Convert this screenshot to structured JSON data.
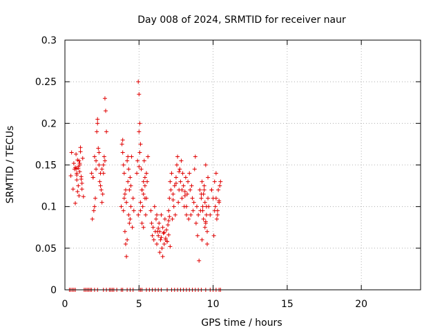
{
  "chart_data": {
    "type": "scatter",
    "title": "Day 008 of 2024, SRMTID for receiver naur",
    "xlabel": "GPS time / hours",
    "ylabel": "SRMTID / TECUs",
    "xlim": [
      0,
      24
    ],
    "ylim": [
      0,
      0.3
    ],
    "x_ticks": [
      0,
      5,
      10,
      15,
      20
    ],
    "x_tick_labels": [
      "0",
      "5",
      "10",
      "15",
      "20"
    ],
    "y_ticks": [
      0,
      0.05,
      0.1,
      0.15,
      0.2,
      0.25,
      0.3
    ],
    "y_tick_labels": [
      "0",
      "0.05",
      "0.1",
      "0.15",
      "0.2",
      "0.25",
      "0.3"
    ],
    "grid": true,
    "marker": "+",
    "color": "#e00000",
    "series": [
      {
        "x": [
          0.4,
          0.45,
          0.55,
          0.6,
          0.65,
          0.7,
          0.75,
          0.8,
          0.85,
          0.9,
          0.95,
          1.0,
          1.05,
          1.1,
          1.15,
          1.2,
          1.25,
          0.7,
          0.8,
          0.9,
          1.0,
          1.1,
          0.75,
          0.85,
          0.95,
          1.05,
          1.15,
          0.8,
          0.9,
          1.0,
          1.8,
          1.85,
          1.9,
          1.95,
          2.0,
          2.05,
          2.1,
          2.15,
          2.2,
          2.25,
          2.3,
          2.35,
          2.4,
          2.45,
          2.5,
          2.55,
          2.6,
          2.65,
          2.7,
          2.75,
          2.8,
          1.9,
          2.0,
          2.1,
          2.2,
          2.3,
          2.4,
          2.5,
          2.6,
          2.7,
          3.8,
          3.85,
          3.9,
          3.95,
          4.0,
          4.05,
          4.1,
          4.15,
          4.2,
          4.25,
          4.3,
          4.35,
          4.4,
          4.45,
          4.5,
          4.55,
          4.6,
          4.65,
          3.9,
          4.0,
          4.1,
          4.2,
          4.3,
          4.4,
          3.95,
          4.05,
          4.15,
          4.25,
          4.35,
          4.45,
          4.85,
          4.9,
          4.95,
          5.0,
          5.05,
          5.1,
          5.15,
          5.2,
          5.25,
          5.3,
          5.35,
          5.4,
          5.45,
          5.5,
          5.55,
          5.6,
          4.95,
          5.0,
          5.05,
          5.1,
          5.2,
          5.3,
          5.4,
          5.5,
          5.0,
          5.1,
          5.2,
          5.3,
          5.4,
          5.5,
          5.8,
          5.85,
          5.9,
          5.95,
          6.0,
          6.05,
          6.1,
          6.15,
          6.2,
          6.25,
          6.3,
          6.35,
          6.4,
          6.45,
          6.5,
          6.55,
          6.6,
          6.65,
          6.7,
          6.75,
          6.8,
          6.85,
          6.9,
          6.95,
          7.0,
          7.05,
          7.1,
          6.2,
          6.4,
          6.6,
          6.8,
          7.0,
          6.3,
          6.5,
          6.7,
          6.9,
          7.0,
          7.05,
          7.1,
          7.15,
          7.2,
          7.25,
          7.3,
          7.35,
          7.4,
          7.45,
          7.5,
          7.55,
          7.6,
          7.65,
          7.7,
          7.75,
          7.8,
          7.85,
          7.9,
          7.95,
          8.0,
          8.05,
          8.1,
          8.15,
          8.2,
          7.3,
          7.5,
          7.7,
          7.9,
          8.1,
          8.2,
          8.25,
          8.3,
          8.35,
          8.4,
          8.45,
          8.5,
          8.55,
          8.6,
          8.65,
          8.7,
          8.75,
          8.8,
          8.85,
          8.9,
          8.95,
          9.0,
          9.05,
          9.1,
          9.15,
          9.2,
          9.25,
          9.3,
          9.35,
          9.4,
          9.45,
          9.5,
          9.55,
          9.6,
          9.65,
          9.2,
          9.3,
          9.4,
          9.5,
          9.6,
          9.7,
          9.8,
          9.9,
          10.0,
          10.05,
          10.1,
          10.15,
          10.2,
          10.25,
          10.3,
          10.35,
          10.4,
          10.45,
          10.5,
          9.35,
          9.45,
          9.55,
          9.65,
          10.1,
          10.2,
          10.3,
          9.25,
          9.5,
          9.9,
          10.4
        ],
        "y": [
          0.137,
          0.165,
          0.121,
          0.152,
          0.145,
          0.104,
          0.163,
          0.132,
          0.118,
          0.148,
          0.155,
          0.142,
          0.171,
          0.136,
          0.128,
          0.158,
          0.112,
          0.147,
          0.14,
          0.125,
          0.15,
          0.133,
          0.145,
          0.156,
          0.113,
          0.166,
          0.121,
          0.138,
          0.146,
          0.152,
          0.14,
          0.085,
          0.135,
          0.095,
          0.16,
          0.11,
          0.145,
          0.19,
          0.205,
          0.17,
          0.15,
          0.13,
          0.14,
          0.12,
          0.145,
          0.115,
          0.15,
          0.16,
          0.23,
          0.215,
          0.19,
          0.135,
          0.1,
          0.155,
          0.2,
          0.165,
          0.125,
          0.105,
          0.14,
          0.155,
          0.1,
          0.175,
          0.165,
          0.095,
          0.11,
          0.07,
          0.055,
          0.04,
          0.155,
          0.13,
          0.145,
          0.12,
          0.085,
          0.1,
          0.16,
          0.075,
          0.11,
          0.095,
          0.18,
          0.14,
          0.12,
          0.06,
          0.09,
          0.135,
          0.15,
          0.115,
          0.105,
          0.16,
          0.08,
          0.125,
          0.14,
          0.155,
          0.25,
          0.235,
          0.2,
          0.175,
          0.145,
          0.12,
          0.1,
          0.13,
          0.155,
          0.11,
          0.09,
          0.14,
          0.13,
          0.16,
          0.09,
          0.19,
          0.165,
          0.105,
          0.08,
          0.115,
          0.125,
          0.14,
          0.148,
          0.095,
          0.12,
          0.075,
          0.135,
          0.11,
          0.095,
          0.08,
          0.065,
          0.075,
          0.06,
          0.1,
          0.07,
          0.085,
          0.055,
          0.07,
          0.065,
          0.08,
          0.045,
          0.06,
          0.09,
          0.05,
          0.075,
          0.068,
          0.055,
          0.085,
          0.062,
          0.072,
          0.058,
          0.078,
          0.066,
          0.088,
          0.052,
          0.09,
          0.07,
          0.04,
          0.06,
          0.083,
          0.074,
          0.063,
          0.069,
          0.058,
          0.095,
          0.11,
          0.13,
          0.12,
          0.14,
          0.085,
          0.115,
          0.1,
          0.125,
          0.09,
          0.135,
          0.15,
          0.16,
          0.105,
          0.12,
          0.145,
          0.13,
          0.155,
          0.11,
          0.14,
          0.125,
          0.1,
          0.118,
          0.135,
          0.09,
          0.108,
          0.128,
          0.142,
          0.12,
          0.113,
          0.1,
          0.115,
          0.13,
          0.085,
          0.14,
          0.12,
          0.09,
          0.125,
          0.11,
          0.095,
          0.105,
          0.145,
          0.16,
          0.08,
          0.1,
          0.065,
          0.09,
          0.035,
          0.12,
          0.095,
          0.115,
          0.13,
          0.1,
          0.085,
          0.12,
          0.105,
          0.15,
          0.09,
          0.07,
          0.11,
          0.11,
          0.095,
          0.125,
          0.08,
          0.055,
          0.1,
          0.09,
          0.12,
          0.11,
          0.065,
          0.13,
          0.1,
          0.14,
          0.085,
          0.095,
          0.12,
          0.105,
          0.125,
          0.13,
          0.115,
          0.075,
          0.1,
          0.135,
          0.095,
          0.11,
          0.09,
          0.06,
          0.082,
          0.12,
          0.107
        ]
      },
      {
        "x": [
          0.3,
          0.4,
          0.5,
          0.6,
          0.7,
          1.3,
          1.4,
          1.5,
          1.6,
          1.7,
          1.8,
          2.0,
          2.2,
          2.6,
          2.8,
          3.0,
          3.1,
          3.2,
          3.3,
          3.5,
          3.8,
          3.9,
          4.2,
          4.4,
          4.6,
          5.0,
          5.1,
          5.2,
          5.5,
          5.7,
          5.9,
          6.1,
          6.3,
          6.5,
          6.9,
          7.2,
          7.4,
          7.6,
          7.8,
          8.0,
          8.2,
          8.4,
          8.6,
          8.8,
          9.0,
          9.2,
          9.5,
          9.8,
          10.0,
          10.2,
          10.4,
          10.5
        ],
        "y": [
          0,
          0,
          0,
          0,
          0,
          0,
          0,
          0,
          0,
          0,
          0,
          0,
          0,
          0,
          0,
          0,
          0,
          0,
          0,
          0,
          0,
          0,
          0,
          0,
          0,
          0,
          0,
          0,
          0,
          0,
          0,
          0,
          0,
          0,
          0,
          0,
          0,
          0,
          0,
          0,
          0,
          0,
          0,
          0,
          0,
          0,
          0,
          0,
          0,
          0,
          0,
          0
        ]
      }
    ]
  }
}
